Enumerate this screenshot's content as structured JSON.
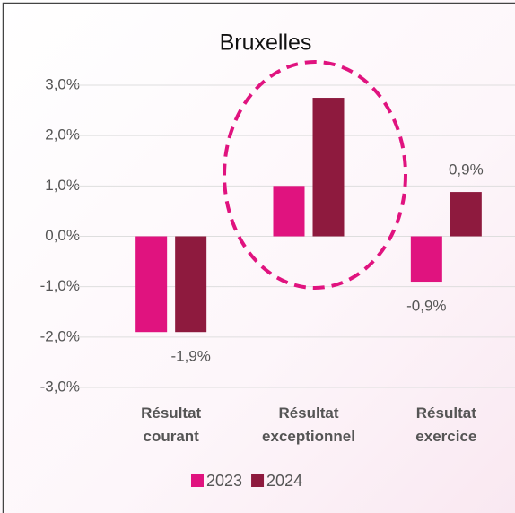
{
  "chart_data": {
    "type": "bar",
    "title": "Bruxelles",
    "categories": [
      "Résultat courant",
      "Résultat exceptionnel",
      "Résultat exercice"
    ],
    "series": [
      {
        "name": "2023",
        "color": "#e0137f",
        "values": [
          -1.9,
          1.0,
          -0.9
        ],
        "value_labels": [
          null,
          null,
          "-0,9%"
        ]
      },
      {
        "name": "2024",
        "color": "#8e1a3e",
        "values": [
          -1.9,
          2.75,
          0.88
        ],
        "value_labels": [
          "-1,9%",
          null,
          "0,9%"
        ]
      }
    ],
    "ylim": [
      -3,
      3
    ],
    "yticks": [
      {
        "value": -3,
        "label": "-3,0%"
      },
      {
        "value": -2,
        "label": "-2,0%"
      },
      {
        "value": -1,
        "label": "-1,0%"
      },
      {
        "value": 0,
        "label": "0,0%"
      },
      {
        "value": 1,
        "label": "1,0%"
      },
      {
        "value": 2,
        "label": "2,0%"
      },
      {
        "value": 3,
        "label": "3,0%"
      }
    ],
    "grid": true,
    "legend": "bottom"
  }
}
